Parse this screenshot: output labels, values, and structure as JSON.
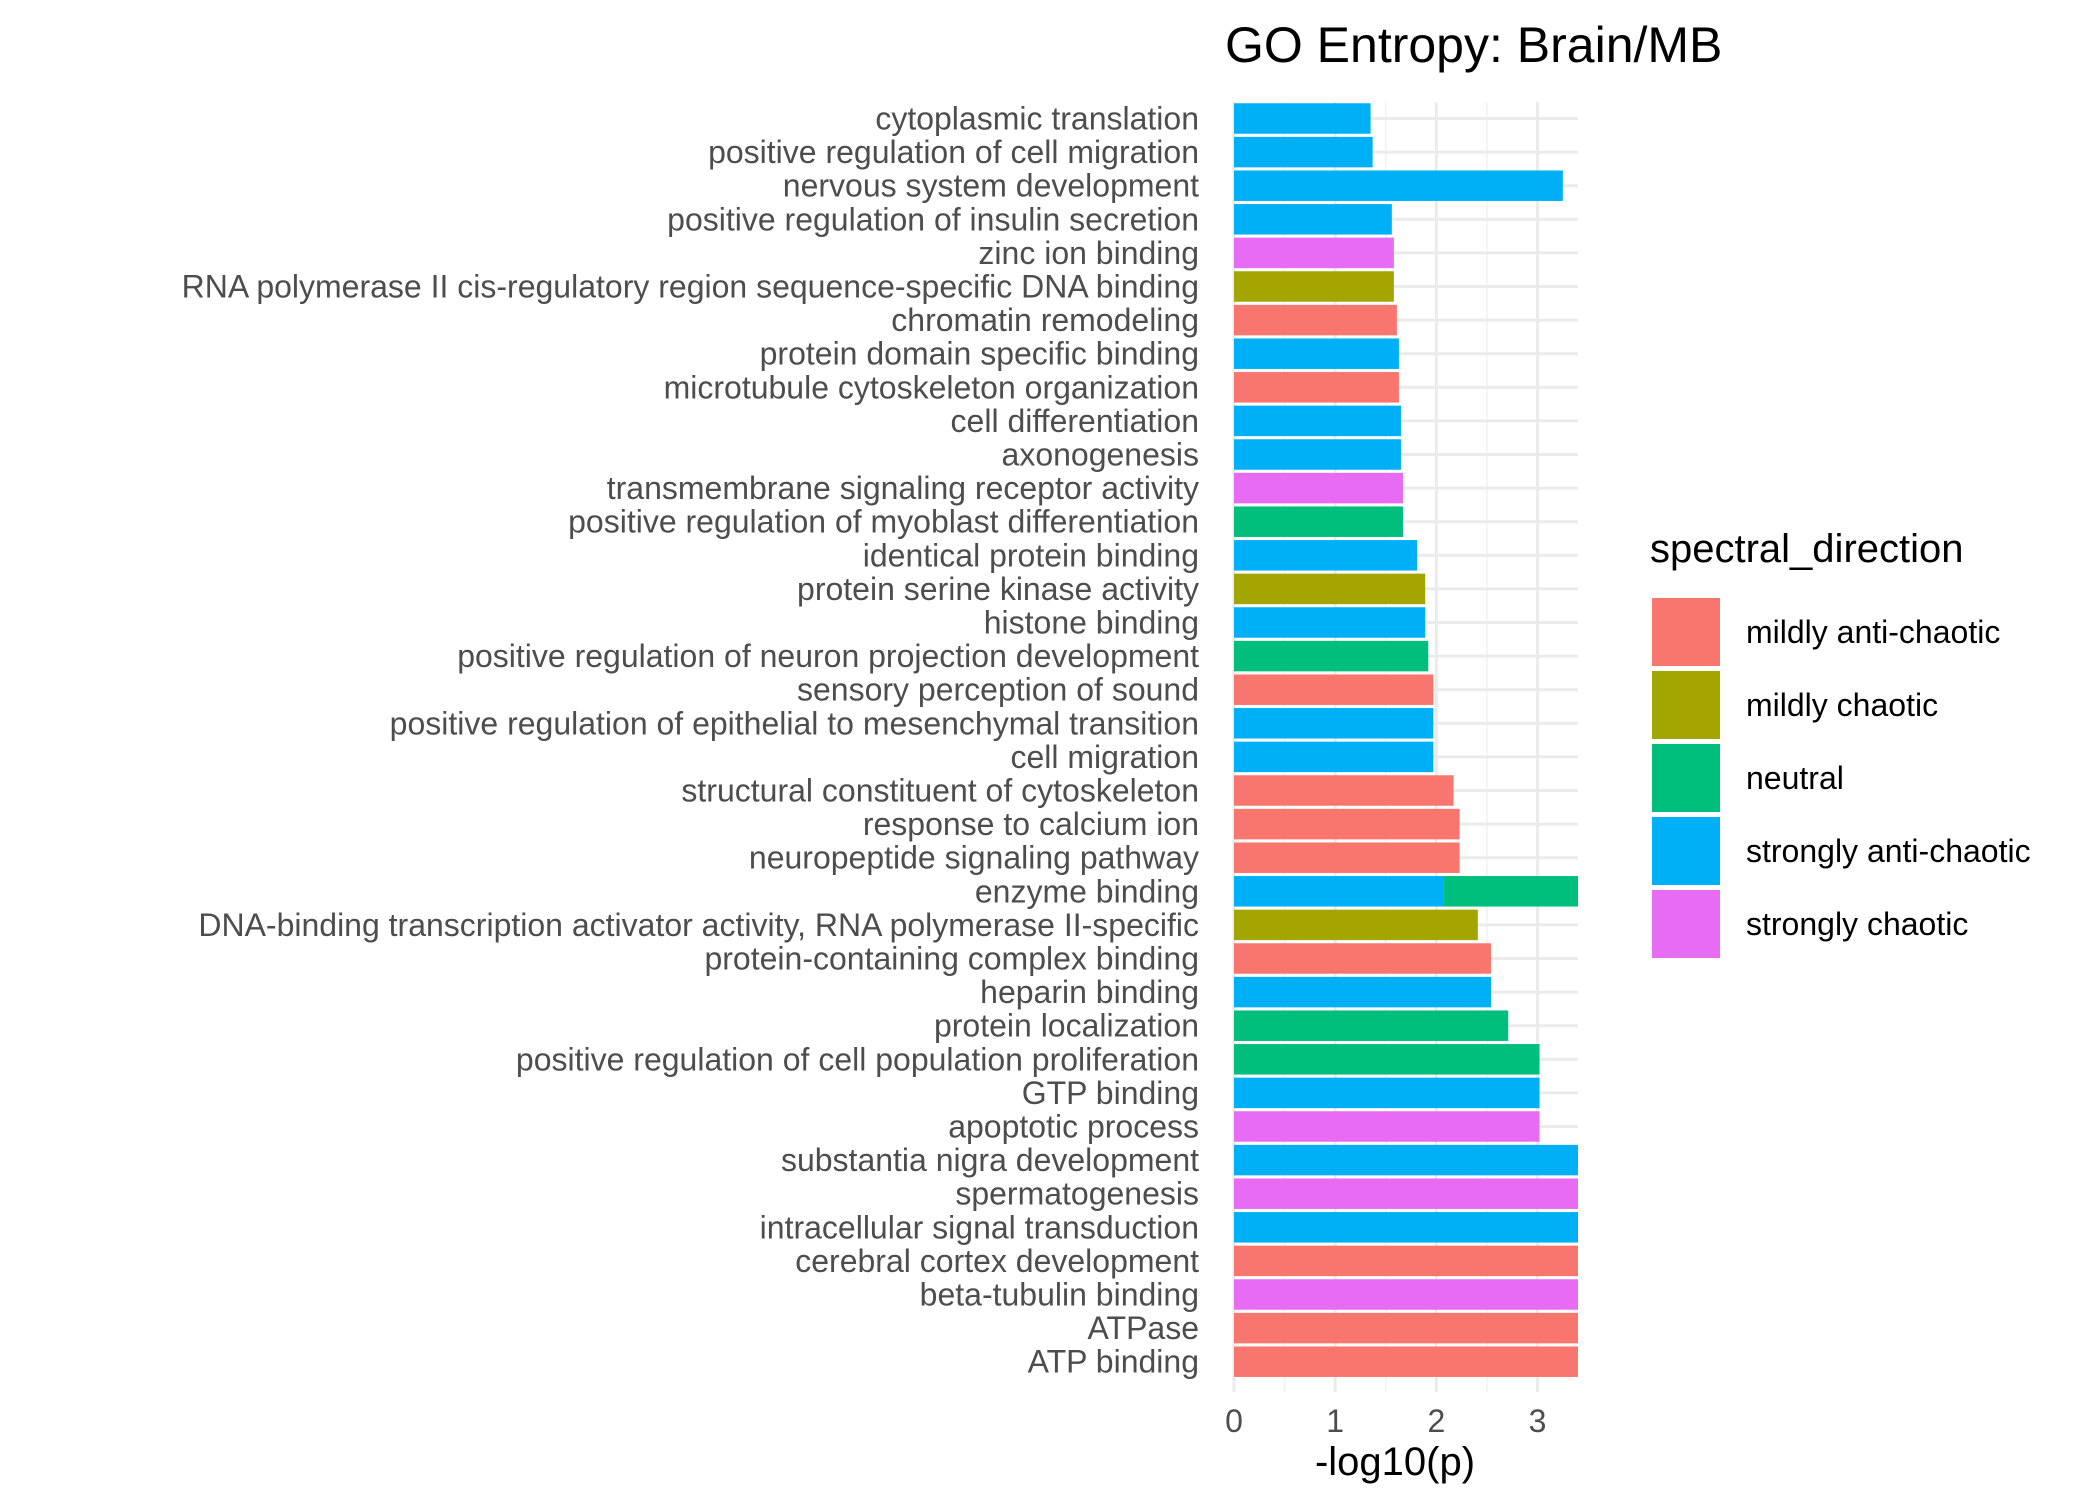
{
  "chart_data": {
    "type": "bar",
    "orientation": "horizontal",
    "title": "GO Entropy: Brain/MB",
    "xlabel": "-log10(p)",
    "ylabel": "",
    "xlim": [
      0,
      3.4
    ],
    "xticks": [
      "0",
      "1",
      "2",
      "3"
    ],
    "grid": true,
    "legend": {
      "title": "spectral_direction",
      "position": "right",
      "entries": [
        {
          "name": "mildly anti-chaotic",
          "color": "#F8766D"
        },
        {
          "name": "mildly chaotic",
          "color": "#A3A500"
        },
        {
          "name": "neutral",
          "color": "#00BF7D"
        },
        {
          "name": "strongly anti-chaotic",
          "color": "#00B0F6"
        },
        {
          "name": "strongly chaotic",
          "color": "#E76BF3"
        }
      ]
    },
    "bars": [
      {
        "term": "cytoplasmic translation",
        "value": 1.35,
        "direction": "strongly anti-chaotic"
      },
      {
        "term": "positive regulation of cell migration",
        "value": 1.37,
        "direction": "strongly anti-chaotic"
      },
      {
        "term": "nervous system development",
        "value": 3.25,
        "direction": "strongly anti-chaotic"
      },
      {
        "term": "positive regulation of insulin secretion",
        "value": 1.56,
        "direction": "strongly anti-chaotic"
      },
      {
        "term": "zinc ion binding",
        "value": 1.58,
        "direction": "strongly chaotic"
      },
      {
        "term": "RNA polymerase II cis-regulatory region sequence-specific DNA binding",
        "value": 1.58,
        "direction": "mildly chaotic"
      },
      {
        "term": "chromatin remodeling",
        "value": 1.61,
        "direction": "mildly anti-chaotic"
      },
      {
        "term": "protein domain specific binding",
        "value": 1.63,
        "direction": "strongly anti-chaotic"
      },
      {
        "term": "microtubule cytoskeleton organization",
        "value": 1.63,
        "direction": "mildly anti-chaotic"
      },
      {
        "term": "cell differentiation",
        "value": 1.65,
        "direction": "strongly anti-chaotic"
      },
      {
        "term": "axonogenesis",
        "value": 1.65,
        "direction": "strongly anti-chaotic"
      },
      {
        "term": "transmembrane signaling receptor activity",
        "value": 1.67,
        "direction": "strongly chaotic"
      },
      {
        "term": "positive regulation of myoblast differentiation",
        "value": 1.67,
        "direction": "neutral"
      },
      {
        "term": "identical protein binding",
        "value": 1.81,
        "direction": "strongly anti-chaotic"
      },
      {
        "term": "protein serine kinase activity",
        "value": 1.89,
        "direction": "mildly chaotic"
      },
      {
        "term": "histone binding",
        "value": 1.89,
        "direction": "strongly anti-chaotic"
      },
      {
        "term": "positive regulation of neuron projection development",
        "value": 1.92,
        "direction": "neutral"
      },
      {
        "term": "sensory perception of sound",
        "value": 1.97,
        "direction": "mildly anti-chaotic"
      },
      {
        "term": "positive regulation of epithelial to mesenchymal transition",
        "value": 1.97,
        "direction": "strongly anti-chaotic"
      },
      {
        "term": "cell migration",
        "value": 1.97,
        "direction": "strongly anti-chaotic"
      },
      {
        "term": "structural constituent of cytoskeleton",
        "value": 2.17,
        "direction": "mildly anti-chaotic"
      },
      {
        "term": "response to calcium ion",
        "value": 2.23,
        "direction": "mildly anti-chaotic"
      },
      {
        "term": "neuropeptide signaling pathway",
        "value": 2.23,
        "direction": "mildly anti-chaotic"
      },
      {
        "term": "enzyme binding",
        "segments": [
          {
            "value": 2.07,
            "direction": "strongly anti-chaotic"
          },
          {
            "value": 1.33,
            "direction": "neutral"
          }
        ]
      },
      {
        "term": "DNA-binding transcription activator activity, RNA polymerase II-specific",
        "value": 2.41,
        "direction": "mildly chaotic"
      },
      {
        "term": "protein-containing complex binding",
        "value": 2.54,
        "direction": "mildly anti-chaotic"
      },
      {
        "term": "heparin binding",
        "value": 2.54,
        "direction": "strongly anti-chaotic"
      },
      {
        "term": "protein localization",
        "value": 2.71,
        "direction": "neutral"
      },
      {
        "term": "positive regulation of cell population proliferation",
        "value": 3.02,
        "direction": "neutral"
      },
      {
        "term": "GTP binding",
        "value": 3.02,
        "direction": "strongly anti-chaotic"
      },
      {
        "term": "apoptotic process",
        "value": 3.02,
        "direction": "strongly chaotic"
      },
      {
        "term": "substantia nigra development",
        "value": 3.4,
        "direction": "strongly anti-chaotic"
      },
      {
        "term": "spermatogenesis",
        "value": 3.4,
        "direction": "strongly chaotic"
      },
      {
        "term": "intracellular signal transduction",
        "value": 3.4,
        "direction": "strongly anti-chaotic"
      },
      {
        "term": "cerebral cortex development",
        "value": 3.4,
        "direction": "mildly anti-chaotic"
      },
      {
        "term": "beta-tubulin binding",
        "value": 3.4,
        "direction": "strongly chaotic"
      },
      {
        "term": "ATPase",
        "value": 3.4,
        "direction": "mildly anti-chaotic"
      },
      {
        "term": "ATP binding",
        "value": 3.4,
        "direction": "mildly anti-chaotic"
      }
    ]
  }
}
